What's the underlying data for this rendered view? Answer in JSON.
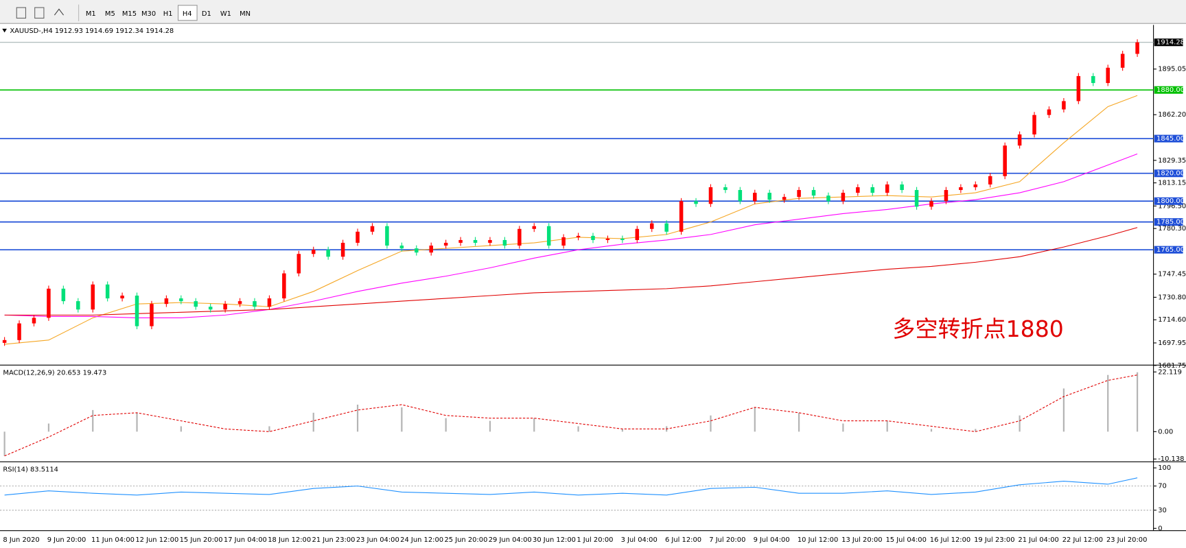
{
  "toolbar": {
    "timeframes": [
      "M1",
      "M5",
      "M15",
      "M30",
      "H1",
      "H4",
      "D1",
      "W1",
      "MN"
    ]
  },
  "chart_data": [
    {
      "type": "candlestick",
      "title": "XAUUSD-,H4  1912.93 1914.69 1912.34 1914.28",
      "categories": [
        "8 Jun 2020",
        null,
        null,
        "9 Jun 20:00",
        null,
        null,
        "11 Jun 04:00",
        null,
        null,
        "12 Jun 12:00",
        null,
        null,
        "15 Jun 20:00",
        null,
        null,
        "17 Jun 04:00",
        null,
        null,
        "18 Jun 12:00",
        null,
        null,
        "21 Jun 23:00",
        null,
        null,
        "23 Jun 04:00",
        null,
        null,
        "24 Jun 12:00",
        null,
        null,
        "25 Jun 20:00",
        null,
        null,
        "29 Jun 04:00",
        null,
        null,
        "30 Jun 12:00",
        null,
        null,
        "1 Jul 20:00",
        null,
        null,
        "3 Jul 04:00",
        null,
        null,
        "6 Jul 12:00",
        null,
        null,
        "7 Jul 20:00",
        null,
        null,
        "9 Jul 04:00",
        null,
        null,
        "10 Jul 12:00",
        null,
        null,
        "13 Jul 20:00",
        null,
        null,
        "15 Jul 04:00",
        null,
        null,
        "16 Jul 12:00",
        null,
        null,
        "19 Jul 23:00",
        null,
        null,
        "21 Jul 04:00",
        null,
        null,
        "22 Jul 12:00",
        null,
        null,
        "23 Jul 20:00",
        null,
        null
      ],
      "values": [
        1700,
        1712,
        1716,
        1737,
        1728,
        1722,
        1740,
        1730,
        1732,
        1710,
        1726,
        1730,
        1728,
        1724,
        1722,
        1726,
        1728,
        1724,
        1730,
        1748,
        1762,
        1765,
        1760,
        1770,
        1778,
        1782,
        1768,
        1766,
        1763,
        1768,
        1770,
        1772,
        1770,
        1772,
        1768,
        1780,
        1782,
        1768,
        1774,
        1775,
        1772,
        1773,
        1772,
        1780,
        1784,
        1778,
        1800,
        1798,
        1810,
        1808,
        1800,
        1806,
        1801,
        1803,
        1808,
        1804,
        1800,
        1806,
        1810,
        1806,
        1812,
        1808,
        1796,
        1800,
        1808,
        1810,
        1812,
        1818,
        1840,
        1848,
        1862,
        1866,
        1872,
        1890,
        1885,
        1896,
        1906,
        1914.28
      ],
      "up_color": "#ff0000",
      "down_color": "#00e07a",
      "series": [
        {
          "color": "#f5a623",
          "x": [
            0,
            3,
            6,
            9,
            12,
            15,
            18,
            21,
            24,
            27,
            30,
            33,
            36,
            39,
            42,
            45,
            48,
            51,
            54,
            57,
            60,
            63,
            66,
            69,
            72,
            75,
            77
          ],
          "values": [
            1697,
            1700,
            1716,
            1726,
            1727,
            1726,
            1724,
            1735,
            1750,
            1764,
            1766,
            1768,
            1770,
            1774,
            1773,
            1776,
            1785,
            1798,
            1802,
            1803,
            1804,
            1803,
            1806,
            1814,
            1842,
            1868,
            1876
          ]
        },
        {
          "color": "#ff00ff",
          "x": [
            0,
            3,
            6,
            9,
            12,
            15,
            18,
            21,
            24,
            27,
            30,
            33,
            36,
            39,
            42,
            45,
            48,
            51,
            54,
            57,
            60,
            63,
            66,
            69,
            72,
            75,
            77
          ],
          "values": [
            1718,
            1717,
            1717,
            1716,
            1716,
            1718,
            1722,
            1728,
            1735,
            1741,
            1746,
            1752,
            1759,
            1765,
            1769,
            1772,
            1776,
            1783,
            1787,
            1791,
            1794,
            1798,
            1801,
            1806,
            1814,
            1826,
            1834
          ]
        },
        {
          "color": "#e00000",
          "x": [
            0,
            3,
            6,
            9,
            12,
            15,
            18,
            21,
            24,
            27,
            30,
            33,
            36,
            39,
            42,
            45,
            48,
            51,
            54,
            57,
            60,
            63,
            66,
            69,
            72,
            75,
            77
          ],
          "values": [
            1718,
            1718,
            1718,
            1719,
            1720,
            1721,
            1722,
            1724,
            1726,
            1728,
            1730,
            1732,
            1734,
            1735,
            1736,
            1737,
            1739,
            1742,
            1745,
            1748,
            1751,
            1753,
            1756,
            1760,
            1767,
            1775,
            1781
          ]
        }
      ],
      "levels": [
        {
          "value": 1880,
          "label": "1880.00",
          "color": "#00c000"
        },
        {
          "value": 1845,
          "label": "1845.00",
          "color": "#1f4fd8"
        },
        {
          "value": 1820,
          "label": "1820.00",
          "color": "#1f4fd8"
        },
        {
          "value": 1800,
          "label": "1800.00",
          "color": "#1f4fd8"
        },
        {
          "value": 1785,
          "label": "1785.00",
          "color": "#1f4fd8"
        },
        {
          "value": 1765,
          "label": "1765.00",
          "color": "#1f4fd8"
        }
      ],
      "last_price": 1914.28,
      "ylim": [
        1682.0,
        1926.8
      ],
      "yticks": [
        1895.05,
        {
          "value": 1862.2,
          "label": "1862.20"
        },
        1829.35,
        1813.15,
        {
          "value": 1796.5,
          "label": "1796.50"
        },
        {
          "value": 1780.3,
          "label": "1780.30"
        },
        1747.45,
        {
          "value": 1730.8,
          "label": "1730.80"
        },
        {
          "value": 1714.6,
          "label": "1714.60"
        },
        1697.95,
        1681.75
      ],
      "annotation": "多空转折点1880"
    },
    {
      "type": "macd",
      "title": "MACD(12,26,9) 20.653 19.473",
      "x": [
        0,
        3,
        6,
        9,
        12,
        15,
        18,
        21,
        24,
        27,
        30,
        33,
        36,
        39,
        42,
        45,
        48,
        51,
        54,
        57,
        60,
        63,
        66,
        69,
        72,
        75,
        77
      ],
      "values": [
        -9,
        3,
        8,
        7,
        2,
        0,
        2,
        7,
        10,
        9,
        5,
        4,
        5,
        2,
        1,
        2,
        6,
        9,
        7,
        3,
        4,
        1,
        1,
        6,
        16,
        21,
        22
      ],
      "signal": [
        -9,
        -2,
        6,
        7,
        4,
        1,
        0,
        4,
        8,
        10,
        6,
        5,
        5,
        3,
        1,
        1,
        4,
        9,
        7,
        4,
        4,
        2,
        0,
        4,
        13,
        19,
        21
      ],
      "color": "#b4b4b4",
      "signal_color": "#e00000",
      "ylim": [
        -10.9,
        24.1
      ],
      "yticks": [
        22.119,
        {
          "value": 0,
          "label": "0.00"
        },
        -10.138
      ]
    },
    {
      "type": "rsi",
      "title": "RSI(14) 83.5114",
      "x": [
        0,
        3,
        6,
        9,
        12,
        15,
        18,
        21,
        24,
        27,
        30,
        33,
        36,
        39,
        42,
        45,
        48,
        51,
        54,
        57,
        60,
        63,
        66,
        69,
        72,
        75,
        77
      ],
      "values": [
        55,
        62,
        58,
        55,
        60,
        58,
        56,
        66,
        70,
        60,
        58,
        56,
        60,
        55,
        58,
        55,
        66,
        68,
        58,
        58,
        62,
        56,
        60,
        72,
        78,
        73,
        83.5
      ],
      "color": "#1e90ff",
      "ylim": [
        -2.5,
        107.5
      ],
      "yticks": [
        100,
        70,
        30,
        0
      ],
      "levels": [
        70,
        30
      ]
    }
  ]
}
